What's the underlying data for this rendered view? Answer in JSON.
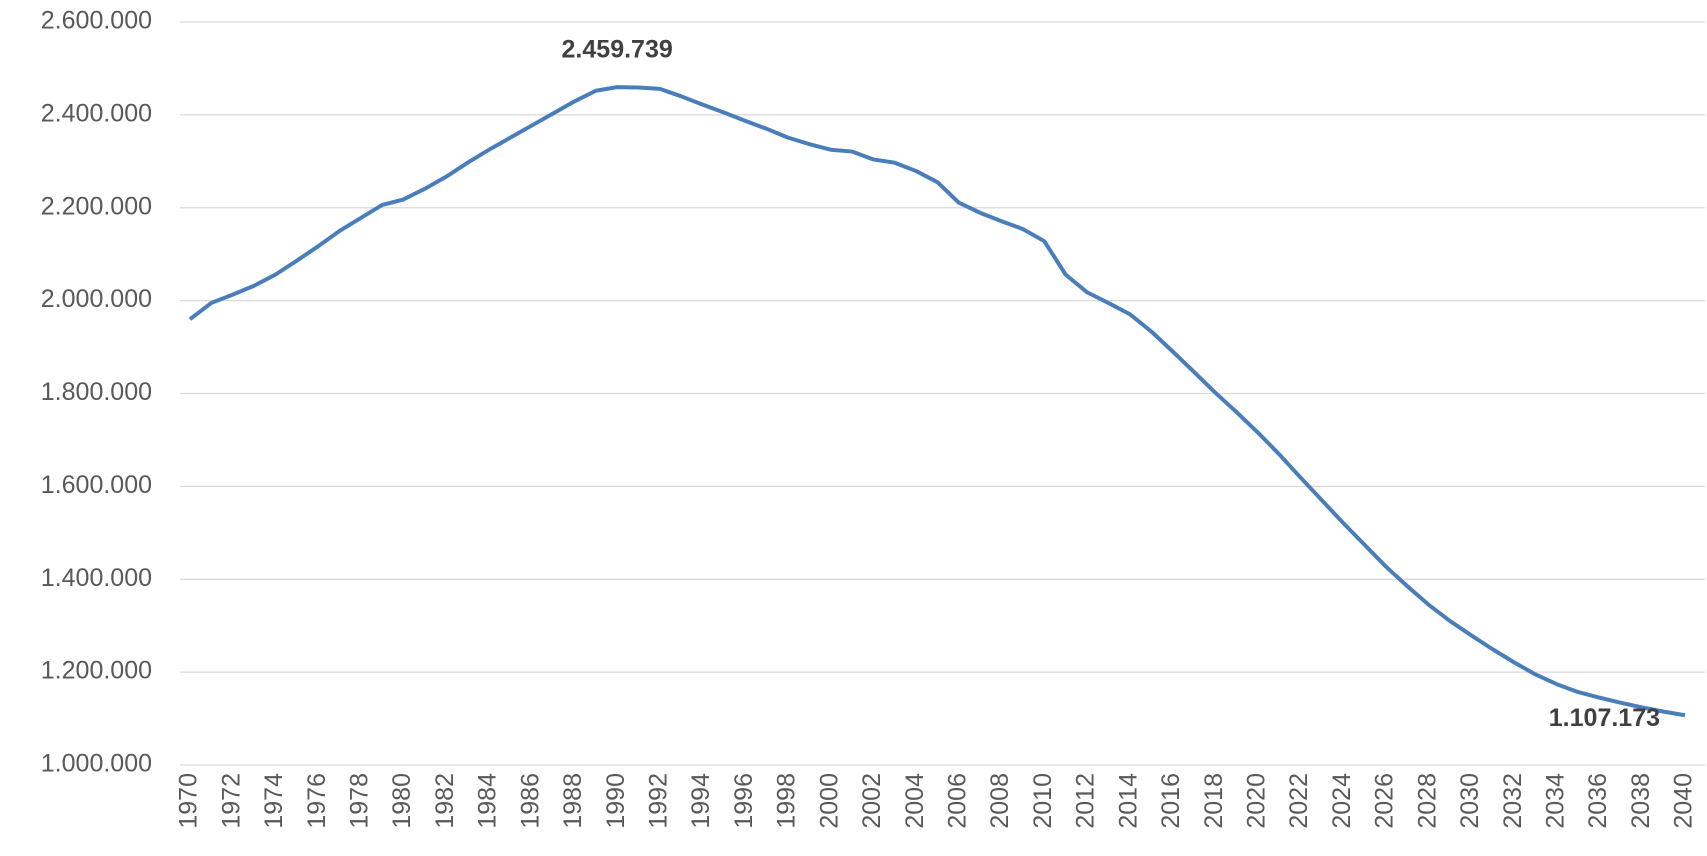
{
  "chart_data": {
    "type": "line",
    "x": [
      1970,
      1971,
      1972,
      1973,
      1974,
      1975,
      1976,
      1977,
      1978,
      1979,
      1980,
      1981,
      1982,
      1983,
      1984,
      1985,
      1986,
      1987,
      1988,
      1989,
      1990,
      1991,
      1992,
      1993,
      1994,
      1995,
      1996,
      1997,
      1998,
      1999,
      2000,
      2001,
      2002,
      2003,
      2004,
      2005,
      2006,
      2007,
      2008,
      2009,
      2010,
      2011,
      2012,
      2013,
      2014,
      2015,
      2016,
      2017,
      2018,
      2019,
      2020,
      2021,
      2022,
      2023,
      2024,
      2025,
      2026,
      2027,
      2028,
      2029,
      2030,
      2031,
      2032,
      2033,
      2034,
      2035,
      2036,
      2037,
      2038,
      2039,
      2040
    ],
    "values": [
      1960000,
      1995000,
      2013000,
      2032000,
      2056000,
      2086000,
      2117000,
      2150000,
      2178000,
      2206000,
      2218000,
      2241000,
      2267000,
      2297000,
      2325000,
      2351000,
      2377000,
      2403000,
      2429000,
      2452000,
      2459739,
      2459000,
      2456000,
      2440000,
      2422000,
      2405000,
      2387000,
      2370000,
      2351000,
      2337000,
      2325000,
      2321000,
      2304000,
      2297000,
      2279000,
      2255000,
      2211000,
      2189000,
      2171000,
      2154000,
      2128000,
      2056000,
      2018000,
      1995000,
      1971000,
      1934000,
      1891000,
      1847000,
      1802000,
      1760000,
      1716000,
      1669000,
      1619000,
      1570000,
      1521000,
      1474000,
      1427000,
      1385000,
      1345000,
      1310000,
      1279000,
      1249000,
      1221000,
      1195000,
      1174000,
      1157000,
      1145000,
      1134000,
      1124000,
      1115000,
      1107173
    ],
    "value_labels": [
      null,
      null,
      null,
      null,
      null,
      null,
      null,
      null,
      null,
      null,
      null,
      null,
      null,
      null,
      null,
      null,
      null,
      null,
      null,
      null,
      "2.459.739",
      null,
      null,
      null,
      null,
      null,
      null,
      null,
      null,
      null,
      null,
      null,
      null,
      null,
      null,
      null,
      null,
      null,
      null,
      null,
      null,
      null,
      null,
      null,
      null,
      null,
      null,
      null,
      null,
      null,
      null,
      null,
      null,
      null,
      null,
      null,
      null,
      null,
      null,
      null,
      null,
      null,
      null,
      null,
      null,
      null,
      null,
      null,
      null,
      null,
      "1.107.173"
    ],
    "color": "#4a7ebb",
    "xlim": [
      1970,
      2040
    ],
    "xticks": [
      1970,
      1972,
      1974,
      1976,
      1978,
      1980,
      1982,
      1984,
      1986,
      1988,
      1990,
      1992,
      1994,
      1996,
      1998,
      2000,
      2002,
      2004,
      2006,
      2008,
      2010,
      2012,
      2014,
      2016,
      2018,
      2020,
      2022,
      2024,
      2026,
      2028,
      2030,
      2032,
      2034,
      2036,
      2038,
      2040
    ],
    "ylim": [
      1000000,
      2600000
    ],
    "yticks": [
      {
        "value": 1000000,
        "label": "1.000.000"
      },
      {
        "value": 1200000,
        "label": "1.200.000"
      },
      {
        "value": 1400000,
        "label": "1.400.000"
      },
      {
        "value": 1600000,
        "label": "1.600.000"
      },
      {
        "value": 1800000,
        "label": "1.800.000"
      },
      {
        "value": 2000000,
        "label": "2.000.000"
      },
      {
        "value": 2200000,
        "label": "2.200.000"
      },
      {
        "value": 2400000,
        "label": "2.400.000"
      },
      {
        "value": 2600000,
        "label": "2.600.000"
      }
    ],
    "grid": true
  }
}
